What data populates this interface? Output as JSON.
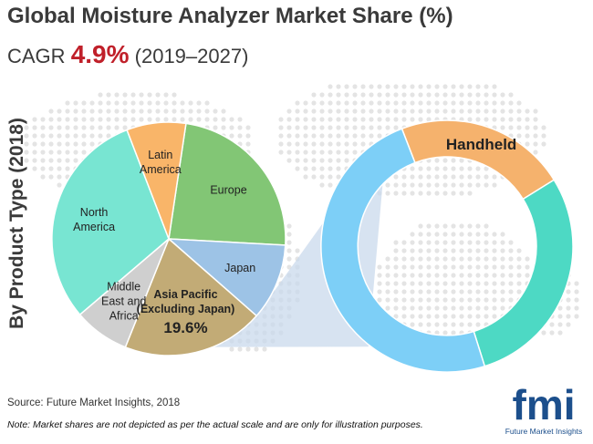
{
  "title": "Global Moisture Analyzer Market Share (%)",
  "cagr": {
    "prefix": "CAGR",
    "value": "4.9%",
    "period": "(2019–2027)"
  },
  "side_label": "By Product Type (2018)",
  "source": "Source: Future Market Insights, 2018",
  "note": "Note: Market shares are not depicted as per the actual scale and are only for illustration purposes.",
  "logo": {
    "mark": "fmi",
    "name": "Future Market Insights"
  },
  "colors": {
    "europe": "#82c675",
    "japan": "#9dc3e6",
    "asia_pacific": "#c2ab76",
    "mea": "#cfcfcf",
    "north_america": "#78e5d2",
    "latin_america": "#f9b569",
    "handheld": "#f5b26d",
    "ring_teal": "#4dd9c4",
    "ring_blue": "#7dcff7",
    "cagr_value": "#c0202a",
    "logo_blue": "#1c4f8c",
    "logo_red": "#c0202a"
  },
  "chart_data": [
    {
      "type": "pie",
      "title": "By Product Type (2018)",
      "slices": [
        {
          "name": "Europe",
          "value": 23.5,
          "label_lines": [
            "Europe"
          ],
          "color": "#82c675"
        },
        {
          "name": "Japan",
          "value": 10.6,
          "label_lines": [
            "Japan"
          ],
          "color": "#9dc3e6"
        },
        {
          "name": "Asia Pacific (Excluding Japan)",
          "value": 19.6,
          "label_lines": [
            "Asia Pacific",
            "(Excluding Japan)",
            "19.6%"
          ],
          "color": "#c2ab76",
          "highlighted": true
        },
        {
          "name": "Middle East and Africa",
          "value": 7.7,
          "label_lines": [
            "Middle",
            "East and",
            "Africa"
          ],
          "color": "#cfcfcf"
        },
        {
          "name": "North America",
          "value": 30.4,
          "label_lines": [
            "North",
            "America"
          ],
          "color": "#78e5d2"
        },
        {
          "name": "Latin America",
          "value": 8.2,
          "label_lines": [
            "Latin",
            "America"
          ],
          "color": "#f9b569"
        }
      ]
    },
    {
      "type": "pie",
      "title": "Asia Pacific (Excluding Japan)",
      "donut": true,
      "slices": [
        {
          "name": "Handheld",
          "value": 22,
          "label": "Handheld",
          "color": "#f5b26d"
        },
        {
          "name": "",
          "value": 29,
          "label": "",
          "color": "#4dd9c4"
        },
        {
          "name": "",
          "value": 49,
          "label": "",
          "color": "#7dcff7"
        }
      ]
    }
  ]
}
